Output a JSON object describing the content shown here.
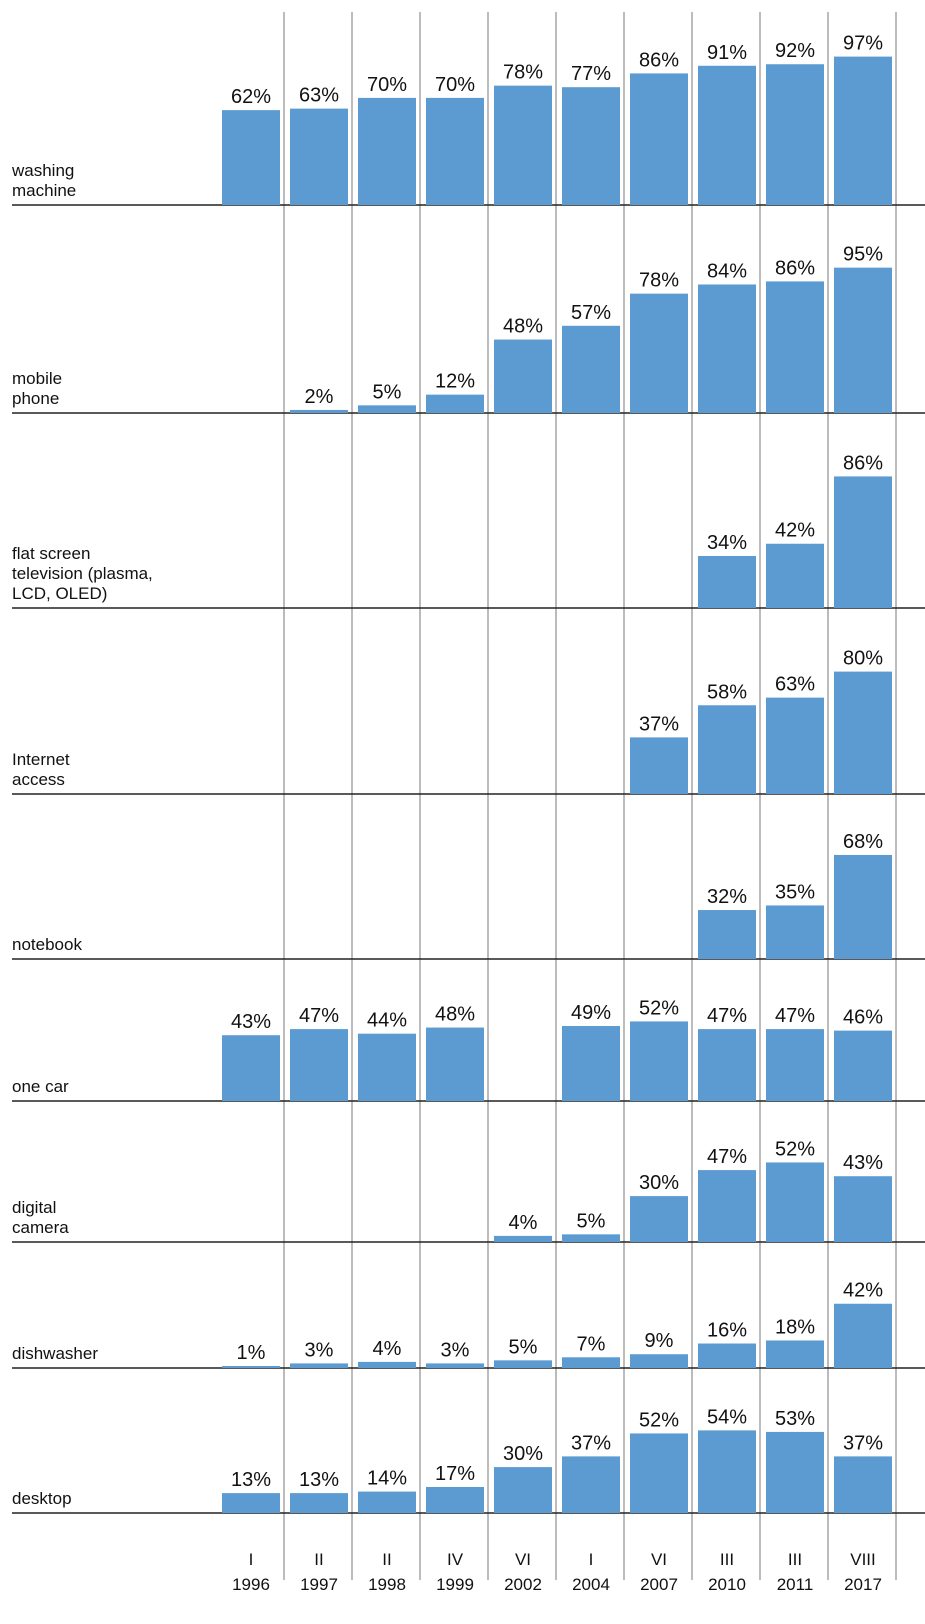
{
  "chart_data": {
    "type": "bar",
    "categories": [
      {
        "month": "I",
        "year": "1996"
      },
      {
        "month": "II",
        "year": "1997"
      },
      {
        "month": "II",
        "year": "1998"
      },
      {
        "month": "IV",
        "year": "1999"
      },
      {
        "month": "VI",
        "year": "2002"
      },
      {
        "month": "I",
        "year": "2004"
      },
      {
        "month": "VI",
        "year": "2007"
      },
      {
        "month": "III",
        "year": "2010"
      },
      {
        "month": "III",
        "year": "2011"
      },
      {
        "month": "VIII",
        "year": "2017"
      }
    ],
    "series": [
      {
        "name": "washing\nmachine",
        "values": [
          62,
          63,
          70,
          70,
          78,
          77,
          86,
          91,
          92,
          97
        ]
      },
      {
        "name": "mobile\nphone",
        "values": [
          null,
          2,
          5,
          12,
          48,
          57,
          78,
          84,
          86,
          95
        ]
      },
      {
        "name": "flat screen\ntelevision (plasma,\nLCD, OLED)",
        "values": [
          null,
          null,
          null,
          null,
          null,
          null,
          null,
          34,
          42,
          86
        ]
      },
      {
        "name": "Internet\naccess",
        "values": [
          null,
          null,
          null,
          null,
          null,
          null,
          37,
          58,
          63,
          80
        ]
      },
      {
        "name": "notebook",
        "values": [
          null,
          null,
          null,
          null,
          null,
          null,
          null,
          32,
          35,
          68
        ]
      },
      {
        "name": "one car",
        "values": [
          43,
          47,
          44,
          48,
          null,
          49,
          52,
          47,
          47,
          46
        ]
      },
      {
        "name": "digital\ncamera",
        "values": [
          null,
          null,
          null,
          null,
          4,
          5,
          30,
          47,
          52,
          43
        ]
      },
      {
        "name": "dishwasher",
        "values": [
          1,
          3,
          4,
          3,
          5,
          7,
          9,
          16,
          18,
          42
        ]
      },
      {
        "name": "desktop",
        "values": [
          13,
          13,
          14,
          17,
          30,
          37,
          52,
          54,
          53,
          37
        ]
      }
    ],
    "value_suffix": "%",
    "ylim": [
      0,
      100
    ],
    "bar_color": "#5b9bd1",
    "grid": "vertical separators between columns",
    "legend": "none; row labels at left"
  }
}
